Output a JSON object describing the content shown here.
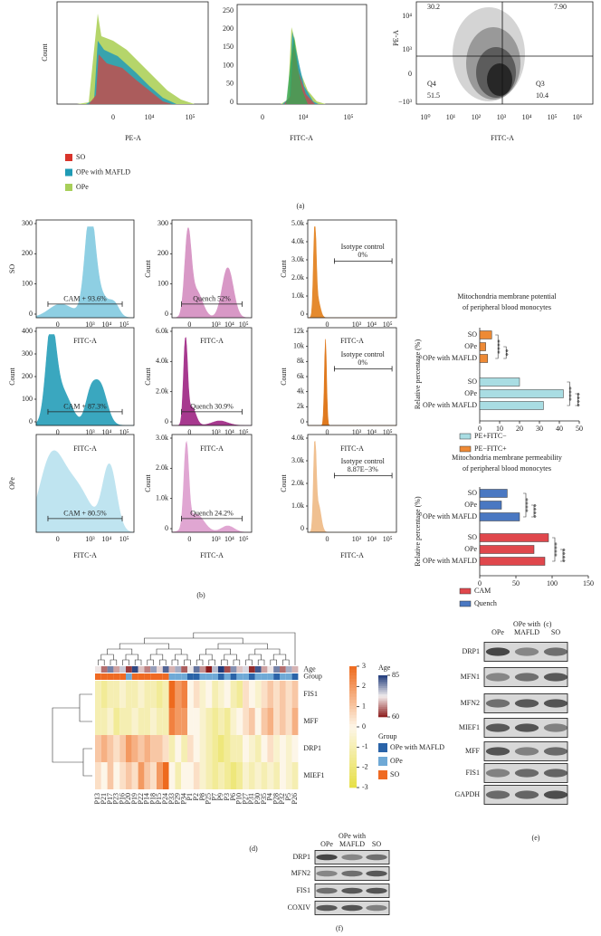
{
  "panel_a": {
    "label": "(a)",
    "histograms": [
      {
        "ylabel": "Count",
        "xlabel": "PE-A",
        "xticks": [
          "0",
          "10⁴",
          "10⁵"
        ]
      },
      {
        "xlabel": "FITC-A",
        "yticks": [
          "250",
          "200",
          "150",
          "100",
          "50",
          "0"
        ],
        "xticks": [
          "0",
          "10⁴",
          "10⁵"
        ]
      }
    ],
    "legend": [
      {
        "name": "SO",
        "color": "#d9342b"
      },
      {
        "name": "OPe with MAFLD",
        "color": "#1f9bb5"
      },
      {
        "name": "OPe",
        "color": "#a8cf5a"
      }
    ],
    "scatter": {
      "xlabel": "FITC-A",
      "ylabel": "PE-A",
      "xticks": [
        "10⁰",
        "10¹",
        "10²",
        "10³",
        "10⁴",
        "10⁵",
        "10⁶"
      ],
      "yticks": [
        "10⁴",
        "10³",
        "0",
        "−10³"
      ],
      "quadrants": [
        "30.2",
        "7.90",
        "Q4",
        "51.5",
        "Q3",
        "10.4"
      ]
    }
  },
  "panel_b": {
    "label": "(b)",
    "rows": [
      {
        "label": "SO",
        "plots": [
          {
            "yticks": [
              "300",
              "200",
              "100",
              "0"
            ],
            "xticks": [
              "0",
              "10³",
              "10⁴",
              "10⁵"
            ],
            "xlabel": "FITC-A",
            "gate": "CAM + 93.6%"
          },
          {
            "ylabel": "Count",
            "yticks": [
              "300",
              "200",
              "100",
              "0"
            ],
            "xticks": [
              "0",
              "10³",
              "10⁴",
              "10⁵"
            ],
            "xlabel": "FITC-A",
            "gate": "Quench 52%"
          },
          {
            "ylabel": "Count",
            "yticks": [
              "5.0k",
              "4.0k",
              "3.0k",
              "2.0k",
              "1.0k",
              "0"
            ],
            "xticks": [
              "0",
              "10³",
              "10⁴",
              "10⁵"
            ],
            "xlabel": "FITC-A",
            "gate": [
              "Isotype control",
              "0%"
            ]
          }
        ]
      },
      {
        "plots": [
          {
            "ylabel": "Count",
            "yticks": [
              "400",
              "300",
              "200",
              "100",
              "0"
            ],
            "xticks": [
              "0",
              "10³",
              "10⁴",
              "10⁵"
            ],
            "xlabel": "FITC-A",
            "gate": "CAM + 87.3%"
          },
          {
            "ylabel": "Count",
            "yticks": [
              "6.0k",
              "4.0k",
              "2.0k",
              "0"
            ],
            "xticks": [
              "0",
              "10³",
              "10⁴",
              "10⁵"
            ],
            "xlabel": "FITC-A",
            "gate": "Quench 30.9%"
          },
          {
            "ylabel": "Count",
            "yticks": [
              "12k",
              "10k",
              "8k",
              "6k",
              "4k",
              "2k",
              "0"
            ],
            "xticks": [
              "0",
              "10³",
              "10⁴",
              "10⁵"
            ],
            "xlabel": "FITC-A",
            "gate": [
              "Isotype control",
              "0%"
            ]
          }
        ]
      },
      {
        "label": "OPe",
        "plots": [
          {
            "xticks": [
              "0",
              "10³",
              "10⁴",
              "10⁵"
            ],
            "xlabel": "FITC-A",
            "gate": "CAM + 80.5%"
          },
          {
            "ylabel": "Count",
            "yticks": [
              "3.0k",
              "2.0k",
              "1.0k",
              "0"
            ],
            "xticks": [
              "0",
              "10³",
              "10⁴",
              "10⁵"
            ],
            "xlabel": "FITC-A",
            "gate": "Quench 24.2%"
          },
          {
            "ylabel": "Count",
            "yticks": [
              "4.0k",
              "3.0k",
              "2.0k",
              "1.0k",
              "0"
            ],
            "xticks": [
              "0",
              "10³",
              "10⁴",
              "10⁵"
            ],
            "xlabel": "FITC-A",
            "gate": [
              "Isotype control",
              "8.87E−3%"
            ]
          }
        ]
      }
    ]
  },
  "panel_c": {
    "label": "(c)",
    "charts": [
      {
        "type": "bar",
        "title": [
          "Mitochondria membrane potential",
          "of peripheral blood monocytes"
        ],
        "ylabel": "Relative percentage (%)",
        "categories": [
          "SO",
          "OPe",
          "OPe with MAFLD"
        ],
        "series": [
          {
            "name": "PE+FITC−",
            "color": "#a9dde3",
            "values": [
              20,
              42,
              32
            ]
          },
          {
            "name": "PE−FITC+",
            "color": "#ee8a35",
            "values": [
              6,
              3,
              4
            ]
          }
        ],
        "xlim": [
          0,
          50
        ],
        "xticks": [
          0,
          10,
          20,
          30,
          40,
          50
        ],
        "significance": [
          [
            "****",
            "**"
          ],
          [
            "****",
            "****"
          ]
        ]
      },
      {
        "type": "bar",
        "title": [
          "Mitochondria membrane permeability",
          "of peripheral blood monocytes"
        ],
        "ylabel": "Relative percentage (%)",
        "categories": [
          "SO",
          "OPe",
          "OPe with MAFLD"
        ],
        "series": [
          {
            "name": "CAM",
            "color": "#e0474c",
            "values": [
              95,
              75,
              90
            ]
          },
          {
            "name": "Quench",
            "color": "#4a78c2",
            "values": [
              38,
              30,
              55
            ]
          }
        ],
        "xlim": [
          0,
          150
        ],
        "xticks": [
          0,
          50,
          100,
          150
        ],
        "significance": [
          [
            "****",
            "****"
          ],
          [
            "****",
            "****"
          ]
        ]
      }
    ]
  },
  "panel_d": {
    "label": "(d)",
    "annotation_rows": [
      "Age",
      "Group"
    ],
    "columns": [
      "P13",
      "P21",
      "P17",
      "P23",
      "P16",
      "P20",
      "P19",
      "P22",
      "P14",
      "P18",
      "P15",
      "P24",
      "P33",
      "P29",
      "P34",
      "P1",
      "P2",
      "P8",
      "P25",
      "P7",
      "P9",
      "P3",
      "P6",
      "P10",
      "P27",
      "P31",
      "P30",
      "P35",
      "P4",
      "P28",
      "P32",
      "P5",
      "P26"
    ],
    "age": [
      72,
      65,
      80,
      68,
      75,
      62,
      84,
      70,
      66,
      78,
      71,
      82,
      69,
      77,
      64,
      73,
      81,
      67,
      60,
      76,
      85,
      63,
      79,
      70,
      74,
      61,
      83,
      68,
      72,
      80,
      65,
      77,
      69
    ],
    "group": [
      2,
      2,
      2,
      2,
      2,
      1,
      2,
      2,
      2,
      2,
      2,
      2,
      1,
      1,
      1,
      0,
      0,
      1,
      1,
      1,
      0,
      1,
      0,
      1,
      1,
      0,
      1,
      1,
      1,
      0,
      1,
      1,
      0
    ],
    "rows": [
      {
        "name": "FIS1",
        "values": [
          -1,
          -1.5,
          -1,
          -1,
          -0.5,
          -1,
          -1,
          -0.5,
          -1,
          -1,
          -1.5,
          -1,
          3,
          2,
          2.5,
          0,
          0.5,
          -0.5,
          0,
          -1,
          -0.5,
          0,
          -1,
          -1.5,
          0.5,
          0,
          -0.5,
          0.5,
          1,
          0.5,
          1,
          0.5,
          1
        ]
      },
      {
        "name": "MFF",
        "values": [
          -1,
          -1,
          -0.5,
          -1.5,
          -1,
          -1,
          -0.5,
          -1,
          -1,
          -0.5,
          -1,
          -1,
          2.5,
          2,
          2,
          0,
          0,
          -0.5,
          -1,
          -1.5,
          -1,
          -1.5,
          -0.5,
          0,
          0.5,
          1,
          0,
          1,
          1.5,
          0.5,
          1,
          0.5,
          1.5
        ]
      },
      {
        "name": "DRP1",
        "values": [
          1,
          1.5,
          1,
          0.5,
          1,
          2,
          1.5,
          1,
          1.5,
          1,
          1,
          0.5,
          -1,
          0,
          -1,
          0.5,
          0,
          -0.5,
          -1,
          -1.5,
          -2,
          -1.5,
          -1,
          -1,
          0,
          -0.5,
          -1,
          0,
          0.5,
          -0.5,
          0,
          -0.5,
          0
        ]
      },
      {
        "name": "MIEF1",
        "values": [
          0.5,
          0,
          1,
          0,
          0.5,
          1,
          0.5,
          2,
          1,
          0.5,
          2,
          3,
          0,
          -1,
          0,
          0,
          0.5,
          -0.5,
          -1,
          -1.5,
          -1,
          -1.5,
          -2,
          -1.5,
          -0.5,
          -1,
          -0.5,
          -1,
          -0.5,
          -1,
          0,
          -0.5,
          -1
        ]
      }
    ],
    "colorbar": {
      "lim": [
        -3,
        3
      ],
      "ticks": [
        3,
        2,
        1,
        0,
        -1,
        -2,
        -3
      ],
      "colors": [
        "#e6df45",
        "#fdf6e8",
        "#ee6a1e"
      ]
    },
    "age_legend": {
      "title": "Age",
      "lim": [
        60,
        85
      ],
      "ticks": [
        85,
        60
      ],
      "colors": [
        "#8b1a1a",
        "#f3eeee",
        "#1f3a7a"
      ]
    },
    "group_legend": {
      "title": "Group",
      "items": [
        {
          "name": "OPe with MAFLD",
          "color": "#2a63a8"
        },
        {
          "name": "OPe",
          "color": "#6fa9d6"
        },
        {
          "name": "SO",
          "color": "#ef6a23"
        }
      ]
    }
  },
  "panel_e": {
    "label": "(e)",
    "header": {
      "left": "OPe",
      "middle": [
        "OPe with",
        "MAFLD"
      ],
      "right": "SO"
    },
    "rows": [
      "DRP1",
      "MFN1",
      "MFN2",
      "MIEF1",
      "MFF",
      "FIS1",
      "GAPDH"
    ]
  },
  "panel_f": {
    "label": "(f)",
    "header": {
      "left": "OPe",
      "middle": [
        "OPe with",
        "MAFLD"
      ],
      "right": "SO"
    },
    "rows": [
      "DRP1",
      "MFN2",
      "FIS1",
      "COXIV"
    ]
  }
}
